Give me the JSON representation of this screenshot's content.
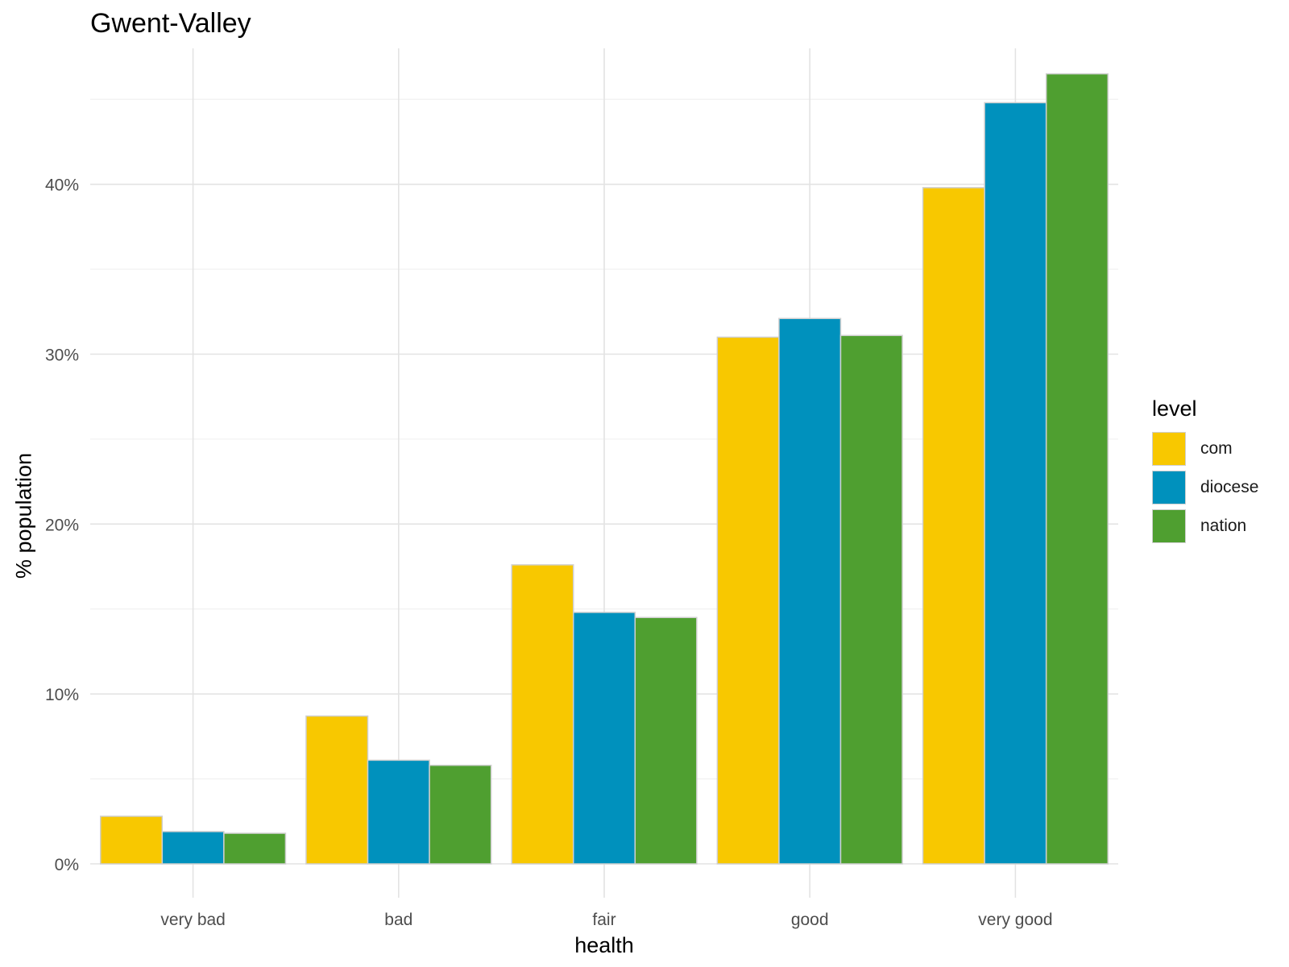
{
  "chart_data": {
    "type": "bar",
    "title": "Gwent-Valley",
    "xlabel": "health",
    "ylabel": "% population",
    "categories": [
      "very bad",
      "bad",
      "fair",
      "good",
      "very good"
    ],
    "series": [
      {
        "name": "com",
        "color": "#F8C800",
        "values": [
          2.8,
          8.7,
          17.6,
          31.0,
          39.8
        ]
      },
      {
        "name": "diocese",
        "color": "#0091BD",
        "values": [
          1.9,
          6.1,
          14.8,
          32.1,
          44.8
        ]
      },
      {
        "name": "nation",
        "color": "#4F9F30",
        "values": [
          1.8,
          5.8,
          14.5,
          31.1,
          46.5
        ]
      }
    ],
    "ylim": [
      0,
      48
    ],
    "yticks": [
      0,
      10,
      20,
      30,
      40
    ],
    "ytick_labels": [
      "0%",
      "10%",
      "20%",
      "30%",
      "40%"
    ],
    "grid": true,
    "legend": {
      "title": "level",
      "position": "right"
    }
  }
}
